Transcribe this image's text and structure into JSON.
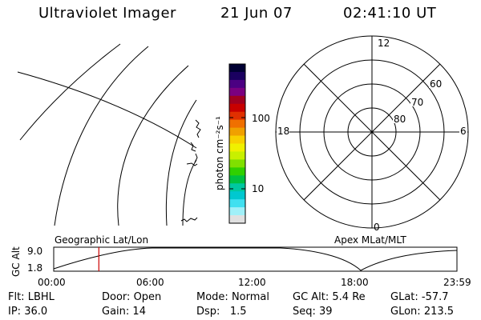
{
  "header": {
    "title": "Ultraviolet Imager",
    "date": "21 Jun 07",
    "time": "02:41:10 UT"
  },
  "colorbar": {
    "unit_label": "photon cm⁻²s⁻¹",
    "ticks": [
      "100",
      "10"
    ],
    "colors": [
      "#000033",
      "#1a0060",
      "#4b0082",
      "#7a0080",
      "#a00020",
      "#c80000",
      "#e03000",
      "#f07000",
      "#f0a000",
      "#f8d000",
      "#f0f000",
      "#c8f000",
      "#80e000",
      "#30d000",
      "#00c040",
      "#00c8a0",
      "#00c8d0",
      "#40e0f0",
      "#a0f0f8",
      "#e0e0e0"
    ]
  },
  "polar_plot": {
    "mlt_labels": {
      "top": "12",
      "left": "18",
      "right": "6",
      "bottom": "0"
    },
    "lat_labels": [
      "60",
      "70",
      "80"
    ]
  },
  "timeline": {
    "left_label": "Geographic Lat/Lon",
    "right_label": "Apex MLat/MLT",
    "y_axis_title": "GC Alt",
    "y_ticks": [
      "9.0",
      "1.8"
    ],
    "x_ticks": [
      "00:00",
      "06:00",
      "12:00",
      "18:00",
      "23:59"
    ],
    "current_time_hours": 2.686,
    "colors": {
      "marker": "#cc0000"
    }
  },
  "footer": {
    "row1": [
      {
        "label": "Flt:",
        "value": "LBHL"
      },
      {
        "label": "Door:",
        "value": "Open"
      },
      {
        "label": "Mode:",
        "value": "Normal"
      },
      {
        "label": "GC Alt:",
        "value": "5.4 Re"
      },
      {
        "label": "GLat:",
        "value": "-57.7"
      }
    ],
    "row2": [
      {
        "label": "IP:",
        "value": "36.0"
      },
      {
        "label": "Gain:",
        "value": "14"
      },
      {
        "label": "Dsp:",
        "value": "1.5"
      },
      {
        "label": "Seq:",
        "value": "39"
      },
      {
        "label": "GLon:",
        "value": "213.5"
      }
    ]
  }
}
